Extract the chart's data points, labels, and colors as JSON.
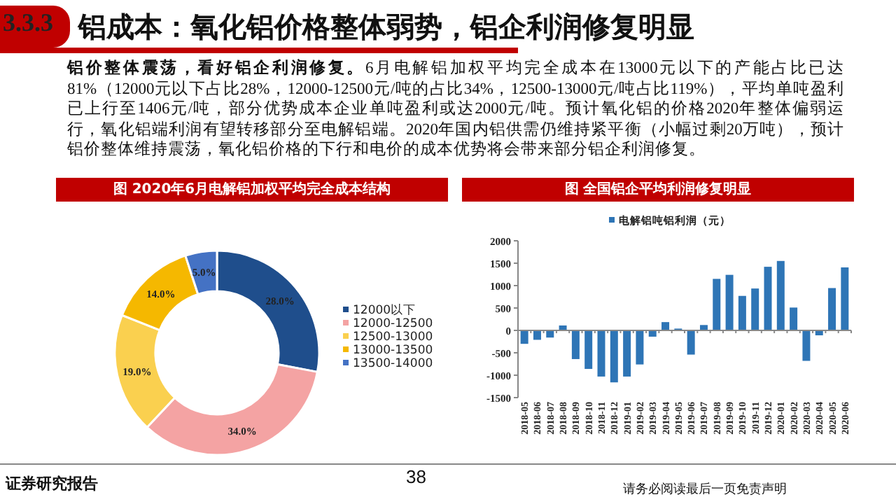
{
  "chart_data": [
    {
      "type": "other",
      "title": "3.3.3 铝成本：氧化铝价格整体弱势，铝企利润修复明显",
      "annotations": [
        "铝价整体震荡，看好铝企利润修复。",
        "6月电解铝加权平均完全成本在13000元以下的产能占比已达81%（12000元以下占比28%，12000-12500元/吨的占比34%，12500-13000元/吨占比119%），平均单吨盈利已上行至1406元/吨，部分优势成本企业单吨盈利或达2000元/吨。预计氧化铝的价格2020年整体偏弱运行，氧化铝端利润有望转移部分至电解铝端。2020年国内铝供需仍维持紧平衡（小幅过剩20万吨），预计铝价整体维持震荡，氧化铝价格的下行和电价的成本优势将会带来部分铝企利润修复。",
        "证券研究报告",
        "38",
        "请务必阅读最后一页免责声明"
      ]
    },
    {
      "type": "donut",
      "title": "图 2020年6月电解铝加权平均完全成本结构",
      "categories": [
        "12000以下",
        "12000-12500",
        "12500-13000",
        "13000-13500",
        "13500-14000"
      ],
      "values": [
        28,
        34,
        19,
        14,
        5
      ],
      "value_labels": [
        "28.0%",
        "34.0%",
        "19.0%",
        "14.0%",
        "5.0%"
      ],
      "colors": [
        "#1f4e8c",
        "#f4a3a3",
        "#fad04f",
        "#f5b800",
        "#4472c4"
      ],
      "legend": "right"
    },
    {
      "type": "bar",
      "title": "图 全国铝企平均利润修复明显",
      "categories": [
        "2018-05",
        "2018-06",
        "2018-07",
        "2018-08",
        "2018-09",
        "2018-10",
        "2018-11",
        "2018-12",
        "2019-01",
        "2019-02",
        "2019-03",
        "2019-04",
        "2019-05",
        "2019-06",
        "2019-07",
        "2019-08",
        "2019-09",
        "2019-10",
        "2019-11",
        "2019-12",
        "2020-01",
        "2020-02",
        "2020-03",
        "2020-04",
        "2020-05",
        "2020-06"
      ],
      "series": [
        {
          "name": "电解铝吨铝利润（元）",
          "color": "#2e75b6",
          "values": [
            -300,
            -210,
            -160,
            110,
            -640,
            -860,
            -1030,
            -1160,
            -1030,
            -760,
            -140,
            185,
            40,
            -540,
            120,
            1150,
            1240,
            770,
            935,
            1420,
            1550,
            510,
            -680,
            -110,
            945,
            1406
          ]
        }
      ],
      "ylim": [
        -1500,
        2000
      ],
      "yticks": [
        -1500,
        -1000,
        -500,
        0,
        500,
        1000,
        1500,
        2000
      ],
      "legend": "top"
    }
  ]
}
